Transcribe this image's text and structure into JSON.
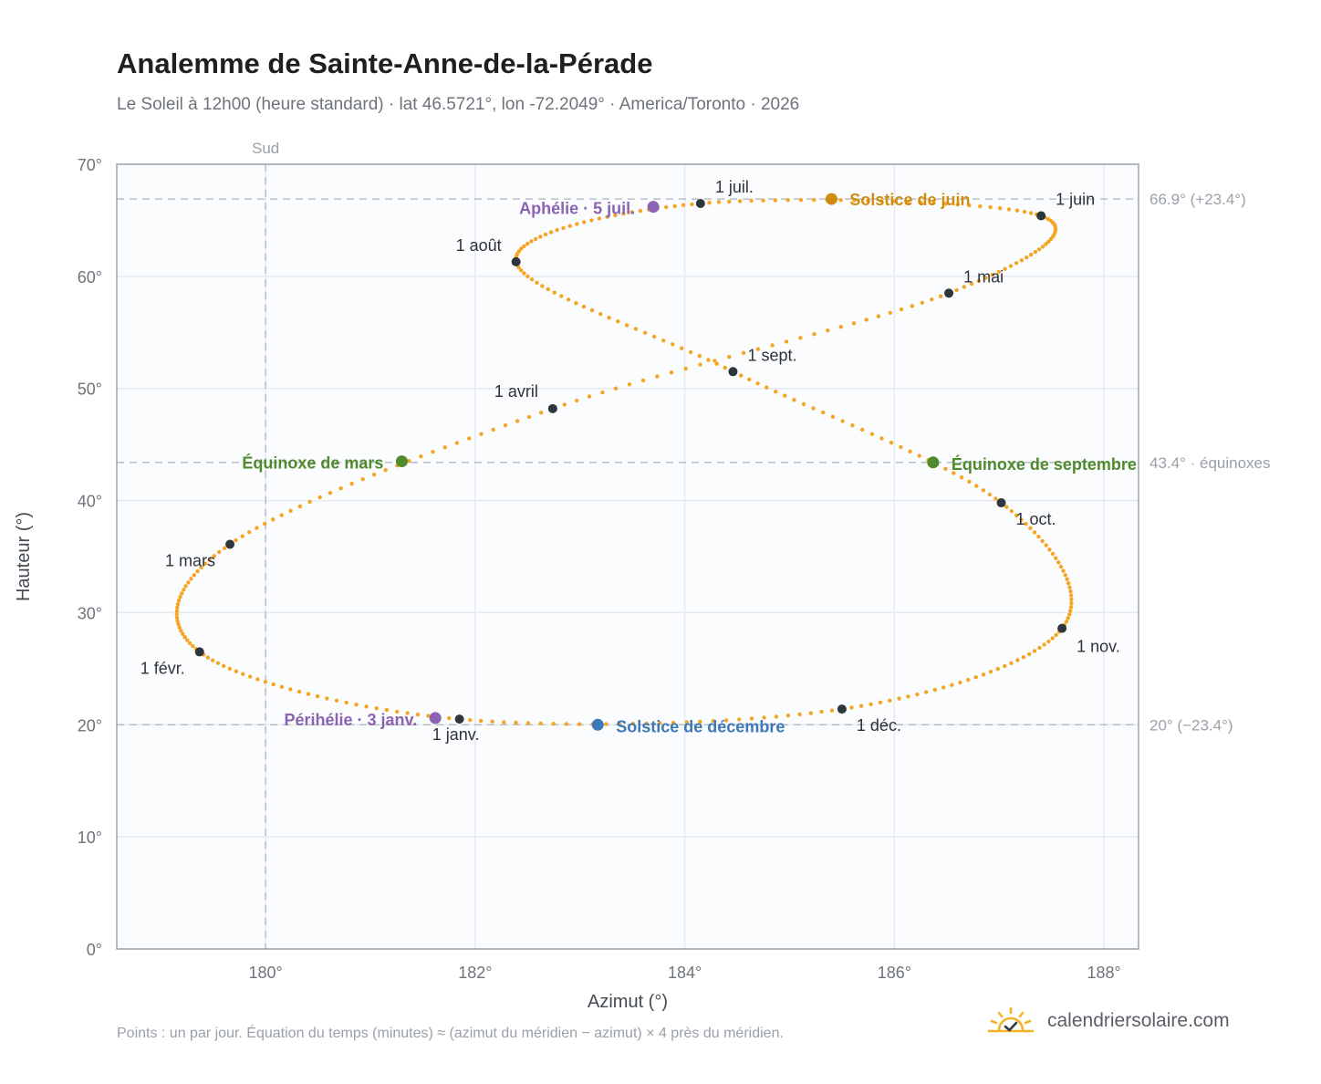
{
  "title": "Analemme de Sainte-Anne-de-la-Pérade",
  "subtitle": "Le Soleil à 12h00 (heure standard) · lat 46.5721°, lon -72.2049° · America/Toronto · 2026",
  "footnote": "Points : un par jour. Équation du temps (minutes) ≈ (azimut du méridien − azimut) × 4 près du méridien.",
  "brand": {
    "name": "calendriersolaire.com",
    "logo_icon": "sun-check-icon",
    "color": "#f2b32a"
  },
  "colors": {
    "curve": "#f5a524",
    "month_marker": "#2f353c",
    "june_solstice": "#d08c0e",
    "december_solstice": "#3d78bb",
    "equinox": "#4f8a2c",
    "aphelion_perihelion": "#8c62b3",
    "reference_line": "#b6bec8",
    "plot_background": "#fafcfe",
    "grid": "#e6eaef",
    "frame": "#9aa3ad"
  },
  "chart_data": {
    "type": "scatter",
    "title": "Analemme de Sainte-Anne-de-la-Pérade",
    "xlabel": "Azimut (°)",
    "ylabel": "Hauteur (°)",
    "xlim": [
      178.58,
      188.33
    ],
    "ylim": [
      0,
      70
    ],
    "xticks": [
      {
        "value": 180,
        "label": "180°"
      },
      {
        "value": 182,
        "label": "182°"
      },
      {
        "value": 184,
        "label": "184°"
      },
      {
        "value": 186,
        "label": "186°"
      },
      {
        "value": 188,
        "label": "188°"
      }
    ],
    "yticks": [
      {
        "value": 0,
        "label": "0°"
      },
      {
        "value": 10,
        "label": "10°"
      },
      {
        "value": 20,
        "label": "20°"
      },
      {
        "value": 30,
        "label": "30°"
      },
      {
        "value": 40,
        "label": "40°"
      },
      {
        "value": 50,
        "label": "50°"
      },
      {
        "value": 60,
        "label": "60°"
      },
      {
        "value": 70,
        "label": "70°"
      }
    ],
    "grid": true,
    "reference_lines": {
      "vertical": [
        {
          "x": 180,
          "label": "Sud"
        }
      ],
      "horizontal": [
        {
          "y": 66.9,
          "label": "66.9° (+23.4°)"
        },
        {
          "y": 43.4,
          "label": "43.4° · équinoxes"
        },
        {
          "y": 20.0,
          "label": "20° (−23.4°)"
        }
      ]
    },
    "series": [
      {
        "kind": "daily",
        "points": [
          [
            181.85,
            20.5
          ],
          [
            179.37,
            26.5
          ],
          [
            179.66,
            36.1
          ],
          [
            182.74,
            48.2
          ],
          [
            186.52,
            58.5
          ],
          [
            187.4,
            65.4
          ],
          [
            184.15,
            66.5
          ],
          [
            182.39,
            61.3
          ],
          [
            184.46,
            51.5
          ],
          [
            187.02,
            39.8
          ],
          [
            187.6,
            28.6
          ],
          [
            185.5,
            21.4
          ]
        ]
      }
    ],
    "month_markers": [
      {
        "label": "1 janv.",
        "x": 181.85,
        "y": 20.5
      },
      {
        "label": "1 févr.",
        "x": 179.37,
        "y": 26.5
      },
      {
        "label": "1 mars",
        "x": 179.66,
        "y": 36.1
      },
      {
        "label": "1 avril",
        "x": 182.74,
        "y": 48.2
      },
      {
        "label": "1 mai",
        "x": 186.52,
        "y": 58.5
      },
      {
        "label": "1 juin",
        "x": 187.4,
        "y": 65.4
      },
      {
        "label": "1 juil.",
        "x": 184.15,
        "y": 66.5
      },
      {
        "label": "1 août",
        "x": 182.39,
        "y": 61.3
      },
      {
        "label": "1 sept.",
        "x": 184.46,
        "y": 51.5
      },
      {
        "label": "1 oct.",
        "x": 187.02,
        "y": 39.8
      },
      {
        "label": "1 nov.",
        "x": 187.6,
        "y": 28.6
      },
      {
        "label": "1 déc.",
        "x": 185.5,
        "y": 21.4
      }
    ],
    "events": [
      {
        "label": "Solstice de juin",
        "x": 185.4,
        "y": 66.9,
        "color": "#d08c0e"
      },
      {
        "label": "Solstice de décembre",
        "x": 183.17,
        "y": 20.0,
        "color": "#3d78bb"
      },
      {
        "label": "Équinoxe de mars",
        "x": 181.3,
        "y": 43.5,
        "color": "#4f8a2c"
      },
      {
        "label": "Équinoxe de septembre",
        "x": 186.37,
        "y": 43.4,
        "color": "#4f8a2c"
      },
      {
        "label": "Aphélie · 5 juil.",
        "x": 183.7,
        "y": 66.2,
        "color": "#8c62b3"
      },
      {
        "label": "Périhélie · 3 janv.",
        "x": 181.62,
        "y": 20.6,
        "color": "#8c62b3"
      }
    ]
  }
}
